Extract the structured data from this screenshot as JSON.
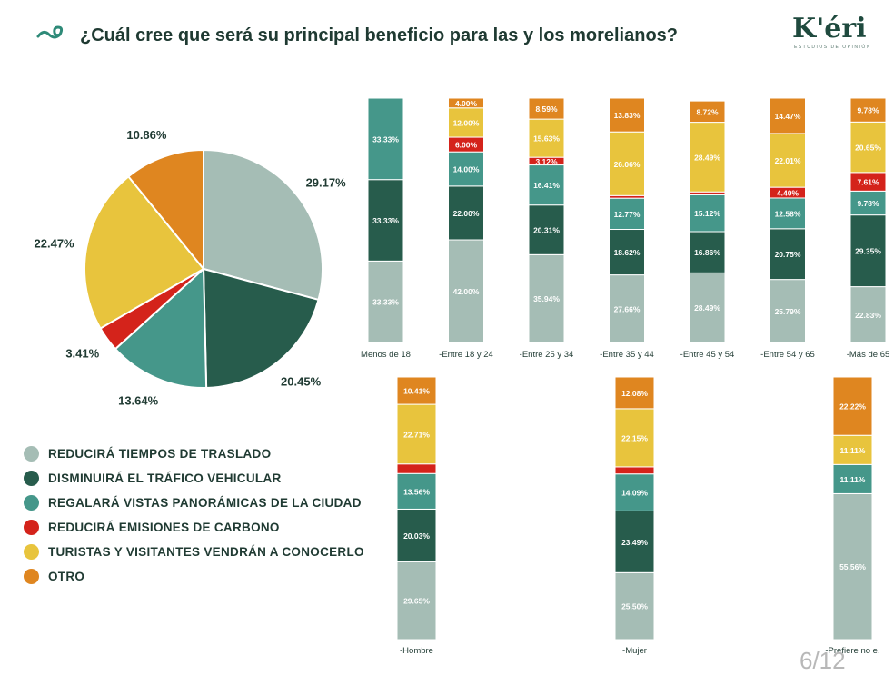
{
  "header": {
    "title": "¿Cuál cree que será su principal beneficio para las y los morelianos?",
    "logo_text": "K'éri",
    "logo_subtitle": "ESTUDIOS DE OPINIÓN",
    "icon": "spiral-wave-icon"
  },
  "page_number": "6/12",
  "colors": {
    "reducira_tiempos": "#a5bdb5",
    "disminuira_trafico": "#275c4c",
    "vistas": "#45978a",
    "emisiones": "#d4231b",
    "turistas": "#e8c43d",
    "otro": "#df8620"
  },
  "legend": [
    {
      "label": "REDUCIRÁ TIEMPOS DE TRASLADO",
      "color": "#a5bdb5"
    },
    {
      "label": "DISMINUIRÁ EL TRÁFICO VEHICULAR",
      "color": "#275c4c"
    },
    {
      "label": "REGALARÁ VISTAS PANORÁMICAS DE LA CIUDAD",
      "color": "#45978a"
    },
    {
      "label": "REDUCIRÁ EMISIONES DE CARBONO",
      "color": "#d4231b"
    },
    {
      "label": "TURISTAS Y VISITANTES VENDRÁN A CONOCERLO",
      "color": "#e8c43d"
    },
    {
      "label": "OTRO",
      "color": "#df8620"
    }
  ],
  "chart_data": [
    {
      "type": "pie",
      "title": "",
      "labels": [
        "REDUCIRÁ TIEMPOS DE TRASLADO",
        "DISMINUIRÁ EL TRÁFICO VEHICULAR",
        "REGALARÁ VISTAS PANORÁMICAS DE LA CIUDAD",
        "REDUCIRÁ EMISIONES DE CARBONO",
        "TURISTAS Y VISITANTES VENDRÁN A CONOCERLO",
        "OTRO"
      ],
      "values": [
        29.17,
        20.45,
        13.64,
        3.41,
        22.47,
        10.86
      ],
      "value_labels": [
        "29.17%",
        "20.45%",
        "13.64%",
        "3.41%",
        "22.47%",
        "10.86%"
      ],
      "colors": [
        "#a5bdb5",
        "#275c4c",
        "#45978a",
        "#d4231b",
        "#e8c43d",
        "#df8620"
      ]
    },
    {
      "type": "bar",
      "stacked": true,
      "title": "",
      "categories": [
        "Menos de 18",
        "-Entre 18 y 24",
        "-Entre 25 y 34",
        "-Entre 35 y 44",
        "-Entre 45 y 54",
        "-Entre 54 y 65",
        "-Más de 65"
      ],
      "ylim": [
        0,
        100
      ],
      "series": [
        {
          "values": [
            33.33,
            42.0,
            35.94,
            27.66,
            28.49,
            25.79,
            22.83
          ],
          "labels": [
            "33.33%",
            "42.00%",
            "35.94%",
            "27.66%",
            "28.49%",
            "25.79%",
            "22.83%"
          ],
          "color": "#a5bdb5"
        },
        {
          "values": [
            33.33,
            22.0,
            20.31,
            18.62,
            16.86,
            20.75,
            29.35
          ],
          "labels": [
            "33.33%",
            "22.00%",
            "20.31%",
            "18.62%",
            "16.86%",
            "20.75%",
            "29.35%"
          ],
          "color": "#275c4c"
        },
        {
          "values": [
            33.33,
            14.0,
            16.41,
            12.77,
            15.12,
            12.58,
            9.78
          ],
          "labels": [
            "33.33%",
            "14.00%",
            "16.41%",
            "12.77%",
            "15.12%",
            "12.58%",
            "9.78%"
          ],
          "color": "#45978a"
        },
        {
          "values": [
            0,
            6.0,
            3.12,
            1.06,
            1.16,
            4.4,
            7.61
          ],
          "labels": [
            "",
            "6.00%",
            "3.12%",
            "",
            "",
            "4.40%",
            "7.61%"
          ],
          "color": "#d4231b"
        },
        {
          "values": [
            0,
            12.0,
            15.63,
            26.06,
            28.49,
            22.01,
            20.65
          ],
          "labels": [
            "",
            "12.00%",
            "15.63%",
            "26.06%",
            "28.49%",
            "22.01%",
            "20.65%"
          ],
          "color": "#e8c43d"
        },
        {
          "values": [
            0,
            4.0,
            8.59,
            13.83,
            8.72,
            14.47,
            9.78
          ],
          "labels": [
            "",
            "4.00%",
            "8.59%",
            "13.83%",
            "8.72%",
            "14.47%",
            "9.78%"
          ],
          "color": "#df8620"
        }
      ]
    },
    {
      "type": "bar",
      "stacked": true,
      "title": "",
      "categories": [
        "-Hombre",
        "-Mujer",
        "-Prefiere no e."
      ],
      "ylim": [
        0,
        100
      ],
      "series": [
        {
          "values": [
            29.65,
            25.5,
            55.56
          ],
          "labels": [
            "29.65%",
            "25.50%",
            "55.56%"
          ],
          "color": "#a5bdb5"
        },
        {
          "values": [
            20.03,
            23.49,
            0
          ],
          "labels": [
            "20.03%",
            "23.49%",
            ""
          ],
          "color": "#275c4c"
        },
        {
          "values": [
            13.56,
            14.09,
            11.11
          ],
          "labels": [
            "13.56%",
            "14.09%",
            "11.11%"
          ],
          "color": "#45978a"
        },
        {
          "values": [
            3.64,
            2.69,
            0
          ],
          "labels": [
            "",
            "",
            ""
          ],
          "color": "#d4231b"
        },
        {
          "values": [
            22.71,
            22.15,
            11.11
          ],
          "labels": [
            "22.71%",
            "22.15%",
            "11.11%"
          ],
          "color": "#e8c43d"
        },
        {
          "values": [
            10.41,
            12.08,
            22.22
          ],
          "labels": [
            "10.41%",
            "12.08%",
            "22.22%"
          ],
          "color": "#df8620"
        }
      ]
    }
  ]
}
